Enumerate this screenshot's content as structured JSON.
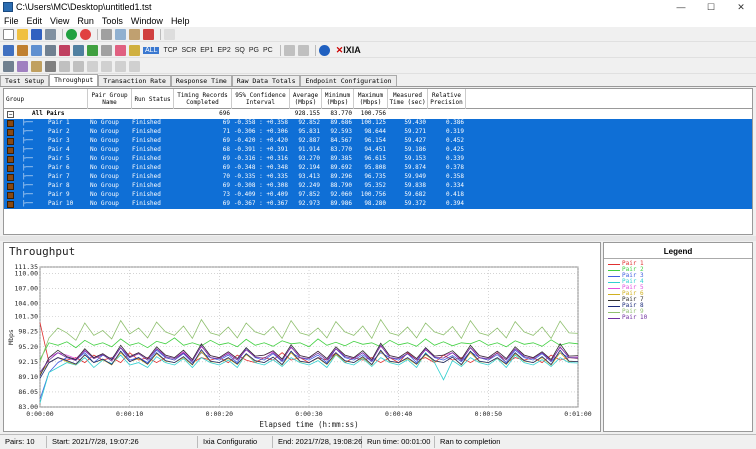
{
  "window": {
    "title": "C:\\Users\\MC\\Desktop\\untitled1.tst",
    "minimize": "—",
    "maximize": "☐",
    "close": "✕"
  },
  "menu": [
    "File",
    "Edit",
    "View",
    "Run",
    "Tools",
    "Window",
    "Help"
  ],
  "toolbar2": {
    "all": "ALL",
    "tcp": "TCP",
    "scr": "SCR",
    "ep1": "EP1",
    "ep2": "EP2",
    "sq": "SQ",
    "pg": "PG",
    "pc": "PC",
    "brand": "IXIA"
  },
  "tabs": [
    "Test Setup",
    "Throughput",
    "Transaction Rate",
    "Response Time",
    "Raw Data Totals",
    "Endpoint Configuration"
  ],
  "active_tab": 1,
  "grid": {
    "headers": {
      "group": "Group",
      "pair_group_name": [
        "Pair Group",
        "Name"
      ],
      "run_status": "Run Status",
      "timing_records": [
        "Timing Records",
        "Completed"
      ],
      "confidence": [
        "95% Confidence",
        "Interval"
      ],
      "average": [
        "Average",
        "(Mbps)"
      ],
      "minimum": [
        "Minimum",
        "(Mbps)"
      ],
      "maximum": [
        "Maximum",
        "(Mbps)"
      ],
      "measured_time": [
        "Measured",
        "Time (sec)"
      ],
      "relative_precision": [
        "Relative",
        "Precision"
      ]
    },
    "summary": {
      "label": "All Pairs",
      "expander": "−",
      "records": "696",
      "average": "928.155",
      "minimum": "83.770",
      "maximum": "100.756"
    },
    "rows": [
      {
        "pair": "Pair 1",
        "group": "No Group",
        "status": "Finished",
        "records": "69",
        "ci": "-0.358 : +0.358",
        "avg": "92.852",
        "min": "89.686",
        "max": "100.125",
        "time": "59.430",
        "rp": "0.386"
      },
      {
        "pair": "Pair 2",
        "group": "No Group",
        "status": "Finished",
        "records": "71",
        "ci": "-0.306 : +0.306",
        "avg": "95.831",
        "min": "92.593",
        "max": "98.644",
        "time": "59.271",
        "rp": "0.319"
      },
      {
        "pair": "Pair 3",
        "group": "No Group",
        "status": "Finished",
        "records": "69",
        "ci": "-0.420 : +0.420",
        "avg": "92.887",
        "min": "84.567",
        "max": "96.154",
        "time": "59.427",
        "rp": "0.452"
      },
      {
        "pair": "Pair 4",
        "group": "No Group",
        "status": "Finished",
        "records": "68",
        "ci": "-0.391 : +0.391",
        "avg": "91.914",
        "min": "83.770",
        "max": "94.451",
        "time": "59.186",
        "rp": "0.425"
      },
      {
        "pair": "Pair 5",
        "group": "No Group",
        "status": "Finished",
        "records": "69",
        "ci": "-0.316 : +0.316",
        "avg": "93.270",
        "min": "89.385",
        "max": "96.615",
        "time": "59.153",
        "rp": "0.339"
      },
      {
        "pair": "Pair 6",
        "group": "No Group",
        "status": "Finished",
        "records": "69",
        "ci": "-0.348 : +0.348",
        "avg": "92.194",
        "min": "89.692",
        "max": "95.808",
        "time": "59.874",
        "rp": "0.378"
      },
      {
        "pair": "Pair 7",
        "group": "No Group",
        "status": "Finished",
        "records": "70",
        "ci": "-0.335 : +0.335",
        "avg": "93.413",
        "min": "89.296",
        "max": "96.735",
        "time": "59.949",
        "rp": "0.358"
      },
      {
        "pair": "Pair 8",
        "group": "No Group",
        "status": "Finished",
        "records": "69",
        "ci": "-0.308 : +0.308",
        "avg": "92.249",
        "min": "88.790",
        "max": "95.352",
        "time": "59.838",
        "rp": "0.334"
      },
      {
        "pair": "Pair 9",
        "group": "No Group",
        "status": "Finished",
        "records": "73",
        "ci": "-0.409 : +0.409",
        "avg": "97.852",
        "min": "92.060",
        "max": "100.756",
        "time": "59.682",
        "rp": "0.418"
      },
      {
        "pair": "Pair 10",
        "group": "No Group",
        "status": "Finished",
        "records": "69",
        "ci": "-0.367 : +0.367",
        "avg": "92.973",
        "min": "89.986",
        "max": "98.280",
        "time": "59.372",
        "rp": "0.394"
      }
    ]
  },
  "chart_data": {
    "type": "line",
    "title": "Throughput",
    "xlabel": "Elapsed time (h:mm:ss)",
    "ylabel": "Mbps",
    "x_ticks": [
      "0:00:00",
      "0:00:10",
      "0:00:20",
      "0:00:30",
      "0:00:40",
      "0:00:50",
      "0:01:00"
    ],
    "y_ticks": [
      "83.00",
      "86.05",
      "89.10",
      "92.15",
      "95.20",
      "98.25",
      "101.30",
      "104.00",
      "107.00",
      "110.00",
      "111.35"
    ],
    "xlim": [
      0,
      60
    ],
    "ylim": [
      83.0,
      111.35
    ],
    "grid": true,
    "series": [
      {
        "name": "Pair 1",
        "color": "#e03030",
        "values": [
          100.1,
          92,
          93,
          92.5,
          93,
          92,
          93.5,
          92.5,
          93,
          92,
          94,
          92.5,
          93,
          92,
          93,
          92.5,
          94,
          92,
          93,
          92.5,
          93,
          92,
          93.5,
          92.5,
          92,
          93,
          92.5,
          94,
          92.5,
          93,
          92,
          93,
          92.5,
          94,
          92,
          93,
          92.5,
          93,
          92,
          93,
          92,
          94,
          92.5,
          93,
          92,
          93.5,
          92.5,
          93,
          92,
          93,
          92.5,
          94,
          92,
          93,
          92.5,
          93,
          92,
          93.5,
          92.5,
          93,
          92.8
        ]
      },
      {
        "name": "Pair 2",
        "color": "#40d040",
        "values": [
          92.6,
          96,
          95.5,
          96.2,
          95,
          96.5,
          95.5,
          96,
          95.2,
          96.8,
          95.5,
          96,
          95,
          96.3,
          95.8,
          97,
          95.5,
          96,
          95.4,
          96.5,
          95.6,
          96,
          95.2,
          96.7,
          95.5,
          96,
          95.3,
          96.4,
          95.8,
          96,
          95.2,
          96.8,
          95.5,
          96.1,
          95.4,
          96.3,
          95.7,
          96,
          95.2,
          96.5,
          95.6,
          96,
          95.3,
          96.8,
          95.5,
          96.2,
          95.4,
          96,
          95.8,
          96.5,
          95.5,
          96,
          95.2,
          96.4,
          95.7,
          96,
          95.3,
          96.6,
          95.5,
          96,
          95.8
        ]
      },
      {
        "name": "Pair 3",
        "color": "#4060e0",
        "values": [
          84.6,
          90,
          92,
          93,
          92.5,
          94,
          92,
          93.5,
          92.8,
          95,
          92.5,
          93,
          92,
          94.5,
          93,
          92.5,
          93.8,
          92,
          94,
          93,
          92.5,
          93.5,
          92,
          95,
          93,
          92.5,
          93.8,
          92.2,
          94,
          93,
          92.5,
          93.5,
          92,
          94.8,
          93,
          92.5,
          93.6,
          92.2,
          94,
          93,
          92.5,
          93.8,
          92,
          95,
          93,
          92.5,
          93.4,
          92.2,
          94.2,
          93,
          92.5,
          93.6,
          92,
          94.5,
          93,
          92.5,
          93.8,
          92.2,
          94,
          93,
          92.9
        ]
      },
      {
        "name": "Pair 4",
        "color": "#30d0d0",
        "values": [
          83.8,
          90,
          91,
          92,
          91.5,
          93,
          91,
          92.5,
          91.8,
          93.5,
          91.5,
          92,
          91,
          93.2,
          92,
          91.5,
          92.8,
          91,
          93,
          92,
          91.5,
          92.5,
          91,
          93.8,
          92,
          91.5,
          92.6,
          91.2,
          93,
          92,
          91.5,
          92.4,
          91,
          93.6,
          92,
          91.5,
          92.8,
          91.2,
          93,
          92,
          91.5,
          92.6,
          91,
          94,
          92,
          88.5,
          92.4,
          91.2,
          93,
          92,
          91.5,
          92.8,
          91,
          93.5,
          92,
          91.5,
          92.6,
          91.2,
          93,
          92,
          91.9
        ]
      },
      {
        "name": "Pair 5",
        "color": "#e050e0",
        "values": [
          89.4,
          93,
          94,
          93.5,
          92.8,
          94.5,
          93,
          93.8,
          92.6,
          95,
          93.2,
          94,
          92.8,
          94.8,
          93.5,
          93,
          94.2,
          92.6,
          95.2,
          93.4,
          93,
          94,
          92.8,
          94.6,
          93.3,
          93.5,
          94.2,
          92.7,
          95,
          93.4,
          93,
          94.3,
          92.8,
          94.8,
          93.5,
          93,
          94,
          92.6,
          95.3,
          93.4,
          93,
          94.2,
          92.8,
          94.7,
          93.3,
          93.5,
          94,
          92.7,
          95,
          93.4,
          93,
          94.3,
          92.8,
          94.8,
          93.5,
          93,
          94,
          92.6,
          95,
          93.3,
          93.3
        ]
      },
      {
        "name": "Pair 6",
        "color": "#d0b020",
        "values": [
          89.7,
          92,
          93,
          92.2,
          91.6,
          93.5,
          92,
          92.6,
          91.5,
          94,
          92.2,
          92.8,
          91.6,
          93.8,
          92.3,
          92,
          93,
          91.5,
          94.2,
          92.2,
          92,
          92.8,
          91.6,
          93.6,
          92.3,
          92,
          93.1,
          91.5,
          94,
          92.2,
          92,
          92.9,
          91.6,
          93.7,
          92.3,
          92,
          93,
          91.5,
          94.3,
          92.2,
          92,
          92.8,
          91.6,
          93.6,
          92.3,
          92,
          93.1,
          91.5,
          94,
          92.2,
          92,
          92.9,
          91.6,
          93.8,
          92.3,
          92,
          93,
          91.5,
          94,
          92.2,
          92.2
        ]
      },
      {
        "name": "Pair 7",
        "color": "#303030",
        "values": [
          89.3,
          93,
          94.5,
          93.2,
          92.6,
          94.8,
          93,
          93.8,
          92.6,
          95.5,
          93.2,
          94,
          92.8,
          95.2,
          93.5,
          93,
          94.5,
          92.6,
          95.8,
          93.4,
          93,
          94.2,
          92.8,
          95,
          93.3,
          93.5,
          94.4,
          92.7,
          95.6,
          93.4,
          93,
          94.3,
          92.8,
          95.2,
          93.5,
          93,
          94.4,
          92.6,
          95.9,
          93.4,
          93,
          94.2,
          92.8,
          95,
          93.3,
          93.5,
          94.4,
          92.7,
          95.5,
          93.4,
          93,
          94.3,
          92.8,
          95.2,
          93.5,
          93,
          94.2,
          92.6,
          95.8,
          93.3,
          93.4
        ]
      },
      {
        "name": "Pair 8",
        "color": "#1a2a7a",
        "values": [
          88.8,
          92,
          93,
          92.4,
          91.7,
          93.6,
          92,
          92.7,
          91.6,
          94.3,
          92.2,
          93,
          91.7,
          94,
          92.4,
          92,
          93.2,
          91.6,
          94.6,
          92.3,
          92,
          93,
          91.7,
          93.8,
          92.4,
          92,
          93.1,
          91.6,
          94.3,
          92.3,
          92,
          93,
          91.7,
          94,
          92.4,
          92,
          93.2,
          91.6,
          94.5,
          92.3,
          92,
          93,
          91.7,
          93.8,
          92.4,
          92,
          93.1,
          91.6,
          94.3,
          92.3,
          92,
          93,
          91.7,
          94,
          92.4,
          92,
          93.2,
          91.6,
          94.5,
          92.3,
          92.2
        ]
      },
      {
        "name": "Pair 9",
        "color": "#90c070",
        "values": [
          92.1,
          97,
          99,
          98,
          96.5,
          100,
          97.5,
          98.5,
          96.8,
          100.5,
          97.8,
          99,
          97,
          100.2,
          98.2,
          97.5,
          99.4,
          96.9,
          100.7,
          98,
          97.5,
          99.2,
          97,
          100,
          98.2,
          97.6,
          99.3,
          96.9,
          100.5,
          98,
          97.5,
          99,
          97,
          100.3,
          98.2,
          97.5,
          99.4,
          96.9,
          100.7,
          98,
          97.5,
          99.2,
          97,
          100,
          98.2,
          97.6,
          99.3,
          96.9,
          100.5,
          98,
          97.5,
          99,
          97,
          100.3,
          98.2,
          97.5,
          99.2,
          96.9,
          100.4,
          98,
          97.9
        ]
      },
      {
        "name": "Pair 10",
        "color": "#7030a0",
        "values": [
          90,
          92.5,
          94,
          93,
          92.4,
          94.4,
          92.8,
          93.6,
          92.3,
          95,
          93,
          93.8,
          92.5,
          94.8,
          93.2,
          92.8,
          94,
          92.3,
          95.4,
          93,
          92.8,
          93.8,
          92.5,
          94.6,
          93.1,
          92.9,
          94,
          92.4,
          95.2,
          93,
          92.8,
          93.9,
          92.5,
          94.8,
          93.2,
          92.8,
          94,
          92.3,
          95.5,
          93,
          92.8,
          93.8,
          92.5,
          94.6,
          93.1,
          92.9,
          94,
          92.4,
          95,
          93,
          92.8,
          93.9,
          92.5,
          94.8,
          93.2,
          92.8,
          94,
          92.3,
          95.2,
          93,
          93
        ]
      }
    ]
  },
  "legend": {
    "title": "Legend"
  },
  "status": {
    "pairs": "Pairs: 10",
    "start": "Start: 2021/7/28, 19:07:26",
    "config": "Ixia Configuratio",
    "end": "End: 2021/7/28, 19:08:26",
    "runtime": "Run time: 00:01:00",
    "result": "Ran to completion"
  }
}
